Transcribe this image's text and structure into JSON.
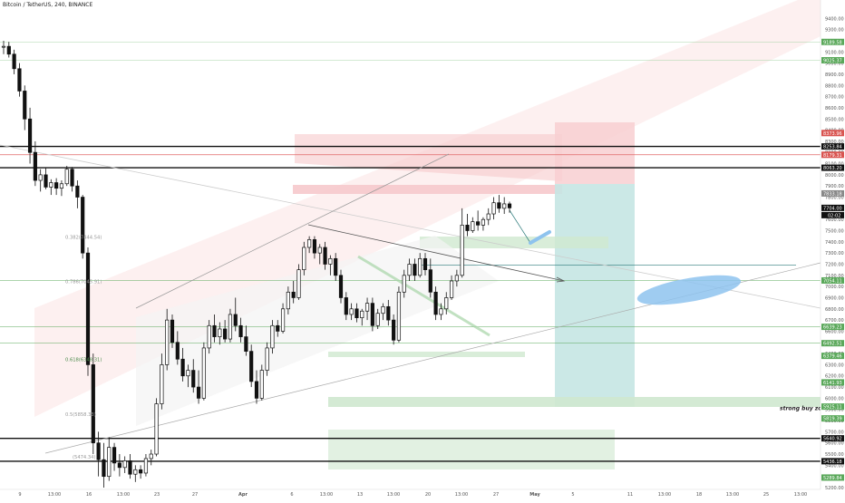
{
  "header": {
    "title": "Bitcoin / TetherUS, 240, BINANCE"
  },
  "colors": {
    "bg": "#ffffff",
    "up": "#111111",
    "down": "#111111",
    "zone_red": "#f6c9cc",
    "zone_green": "#cfe8cf",
    "target_box": "#c5e6e3",
    "stop_box": "#f8cfd1",
    "ellipse": "#8ec3ee",
    "axis_text": "#555555"
  },
  "chart_data": {
    "type": "candlestick",
    "title": "Bitcoin / TetherUS, 240, BINANCE",
    "ylim": [
      5200,
      9500
    ],
    "y_ticks": [
      5200,
      5300,
      5400,
      5500,
      5600,
      5700,
      5800,
      5900,
      6000,
      6100,
      6200,
      6300,
      6400,
      6500,
      6600,
      6700,
      6800,
      6900,
      7000,
      7100,
      7200,
      7300,
      7400,
      7500,
      7600,
      7700,
      7800,
      7900,
      8000,
      8100,
      8200,
      8300,
      8400,
      8500,
      8600,
      8700,
      8800,
      8900,
      9000,
      9100,
      9200,
      9300,
      9400
    ],
    "x_tick_labels": [
      "9",
      "13:00",
      "16",
      "13:00",
      "23",
      "27",
      "Apr",
      "6",
      "13:00",
      "13",
      "13:00",
      "20",
      "13:00",
      "27",
      "May",
      "5",
      "11",
      "13:00",
      "18",
      "13:00",
      "25",
      "13:00"
    ],
    "price_labels": [
      {
        "text": "9189.58",
        "value": 9189.58,
        "color": "#5aa85a"
      },
      {
        "text": "9025.37",
        "value": 9025.37,
        "color": "#5aa85a"
      },
      {
        "text": "8373.96",
        "value": 8373.96,
        "color": "#d9534f"
      },
      {
        "text": "8253.84",
        "value": 8253.84,
        "color": "#111111"
      },
      {
        "text": "8179.31",
        "value": 8179.31,
        "color": "#d9534f"
      },
      {
        "text": "8063.20",
        "value": 8063.2,
        "color": "#111111"
      },
      {
        "text": "7833.18",
        "value": 7833.18,
        "color": "#888888"
      },
      {
        "text": "7704.00",
        "value": 7704.0,
        "color": "#111111"
      },
      {
        "text": "7054.11",
        "value": 7054.11,
        "color": "#5aa85a"
      },
      {
        "text": "6639.23",
        "value": 6639.23,
        "color": "#5aa85a"
      },
      {
        "text": "6492.51",
        "value": 6492.51,
        "color": "#5aa85a"
      },
      {
        "text": "6379.46",
        "value": 6379.46,
        "color": "#5aa85a"
      },
      {
        "text": "6141.93",
        "value": 6141.93,
        "color": "#5aa85a"
      },
      {
        "text": "5925.11",
        "value": 5925.11,
        "color": "#5aa85a"
      },
      {
        "text": "5819.39",
        "value": 5819.39,
        "color": "#5aa85a"
      },
      {
        "text": "5640.92",
        "value": 5640.92,
        "color": "#111111"
      },
      {
        "text": "5436.18",
        "value": 5436.18,
        "color": "#111111"
      },
      {
        "text": "5289.84",
        "value": 5289.84,
        "color": "#5aa85a"
      }
    ],
    "countdown": "02:02",
    "fib_levels": [
      {
        "text": "0.382(7444.54)",
        "value": 7444.54
      },
      {
        "text": "0.786(7045.91)",
        "value": 7045.91
      },
      {
        "text": "0.618(6348.31)",
        "value": 6348.31
      },
      {
        "text": "0.5(5858.33)",
        "value": 5858.33
      },
      {
        "text": "(5474.34)",
        "value": 5474.34
      }
    ],
    "annotations": [
      {
        "text": "strong buy zone",
        "value": 5925
      }
    ],
    "candles": [
      [
        9150,
        9200,
        9080,
        9150
      ],
      [
        9150,
        9190,
        9050,
        9080
      ],
      [
        9080,
        9120,
        8900,
        8950
      ],
      [
        8950,
        9000,
        8700,
        8750
      ],
      [
        8750,
        8800,
        8400,
        8500
      ],
      [
        8500,
        8600,
        8100,
        8200
      ],
      [
        8200,
        8300,
        7900,
        7950
      ],
      [
        7950,
        8050,
        7850,
        8000
      ],
      [
        8000,
        8060,
        7870,
        7890
      ],
      [
        7890,
        7960,
        7820,
        7930
      ],
      [
        7930,
        7970,
        7820,
        7880
      ],
      [
        7880,
        7950,
        7810,
        7920
      ],
      [
        7920,
        8080,
        7900,
        8050
      ],
      [
        8050,
        8070,
        7850,
        7900
      ],
      [
        7900,
        7950,
        7700,
        7800
      ],
      [
        7800,
        7820,
        7250,
        7300
      ],
      [
        7300,
        7350,
        6200,
        6300
      ],
      [
        6300,
        6400,
        5500,
        5600
      ],
      [
        5600,
        5700,
        5300,
        5450
      ],
      [
        5450,
        5600,
        5200,
        5300
      ],
      [
        5300,
        5650,
        5260,
        5560
      ],
      [
        5560,
        5600,
        5350,
        5420
      ],
      [
        5420,
        5500,
        5300,
        5380
      ],
      [
        5380,
        5480,
        5330,
        5440
      ],
      [
        5440,
        5500,
        5280,
        5320
      ],
      [
        5320,
        5400,
        5250,
        5360
      ],
      [
        5360,
        5400,
        5280,
        5330
      ],
      [
        5330,
        5500,
        5300,
        5460
      ],
      [
        5460,
        5540,
        5400,
        5500
      ],
      [
        5500,
        6000,
        5480,
        5950
      ],
      [
        5950,
        6400,
        5900,
        6300
      ],
      [
        6300,
        6800,
        6250,
        6700
      ],
      [
        6700,
        6750,
        6450,
        6500
      ],
      [
        6500,
        6600,
        6300,
        6350
      ],
      [
        6350,
        6450,
        6150,
        6200
      ],
      [
        6200,
        6300,
        6100,
        6250
      ],
      [
        6250,
        6350,
        6050,
        6100
      ],
      [
        6100,
        6250,
        5950,
        6000
      ],
      [
        6000,
        6500,
        5980,
        6450
      ],
      [
        6450,
        6700,
        6400,
        6650
      ],
      [
        6650,
        6750,
        6500,
        6550
      ],
      [
        6550,
        6680,
        6480,
        6620
      ],
      [
        6620,
        6700,
        6500,
        6530
      ],
      [
        6530,
        6800,
        6500,
        6750
      ],
      [
        6750,
        6900,
        6600,
        6650
      ],
      [
        6650,
        6720,
        6500,
        6550
      ],
      [
        6550,
        6650,
        6380,
        6420
      ],
      [
        6420,
        6480,
        6100,
        6150
      ],
      [
        6150,
        6250,
        5950,
        6000
      ],
      [
        6000,
        6300,
        5980,
        6250
      ],
      [
        6250,
        6500,
        6200,
        6450
      ],
      [
        6450,
        6700,
        6400,
        6650
      ],
      [
        6650,
        6700,
        6550,
        6600
      ],
      [
        6600,
        6850,
        6580,
        6800
      ],
      [
        6800,
        7000,
        6750,
        6950
      ],
      [
        6950,
        7050,
        6850,
        6900
      ],
      [
        6900,
        7200,
        6880,
        7150
      ],
      [
        7150,
        7400,
        7100,
        7350
      ],
      [
        7350,
        7450,
        7300,
        7420
      ],
      [
        7420,
        7450,
        7250,
        7300
      ],
      [
        7300,
        7380,
        7200,
        7350
      ],
      [
        7350,
        7400,
        7150,
        7200
      ],
      [
        7200,
        7280,
        7100,
        7250
      ],
      [
        7250,
        7300,
        7050,
        7100
      ],
      [
        7100,
        7150,
        6850,
        6900
      ],
      [
        6900,
        6950,
        6700,
        6750
      ],
      [
        6750,
        6850,
        6700,
        6800
      ],
      [
        6800,
        6850,
        6680,
        6720
      ],
      [
        6720,
        6800,
        6650,
        6780
      ],
      [
        6780,
        6900,
        6700,
        6850
      ],
      [
        6850,
        6900,
        6600,
        6650
      ],
      [
        6650,
        6800,
        6620,
        6760
      ],
      [
        6760,
        6850,
        6700,
        6820
      ],
      [
        6820,
        6880,
        6650,
        6700
      ],
      [
        6700,
        6750,
        6480,
        6520
      ],
      [
        6520,
        7000,
        6500,
        6950
      ],
      [
        6950,
        7150,
        6900,
        7100
      ],
      [
        7100,
        7250,
        7050,
        7200
      ],
      [
        7200,
        7250,
        7050,
        7100
      ],
      [
        7100,
        7300,
        7080,
        7250
      ],
      [
        7250,
        7300,
        7100,
        7150
      ],
      [
        7150,
        7250,
        6900,
        6950
      ],
      [
        6950,
        7000,
        6700,
        6750
      ],
      [
        6750,
        6850,
        6700,
        6800
      ],
      [
        6800,
        6950,
        6750,
        6900
      ],
      [
        6900,
        7100,
        6880,
        7050
      ],
      [
        7050,
        7150,
        7000,
        7100
      ],
      [
        7100,
        7700,
        7080,
        7550
      ],
      [
        7550,
        7650,
        7450,
        7500
      ],
      [
        7500,
        7620,
        7480,
        7580
      ],
      [
        7580,
        7680,
        7500,
        7550
      ],
      [
        7550,
        7620,
        7500,
        7600
      ],
      [
        7600,
        7700,
        7550,
        7650
      ],
      [
        7650,
        7800,
        7600,
        7750
      ],
      [
        7750,
        7820,
        7660,
        7700
      ],
      [
        7700,
        7800,
        7650,
        7740
      ],
      [
        7740,
        7760,
        7660,
        7704
      ]
    ]
  }
}
